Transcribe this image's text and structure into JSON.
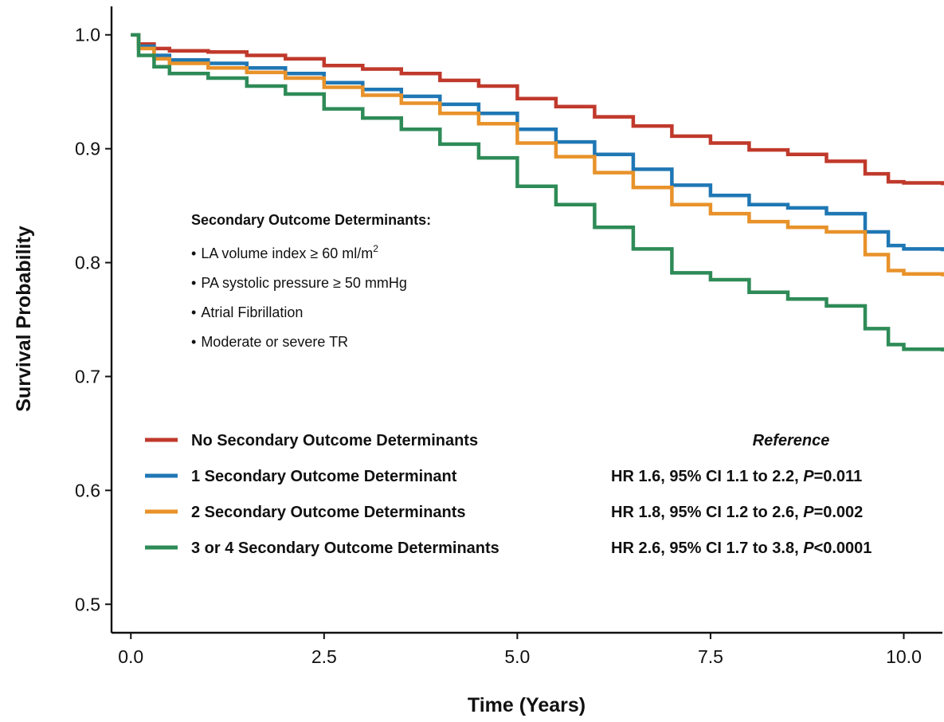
{
  "chart_data": {
    "type": "line",
    "title": "",
    "xlabel": "Time (Years)",
    "ylabel": "Survival Probability",
    "xlim": [
      -0.25,
      10.5
    ],
    "ylim": [
      0.475,
      1.025
    ],
    "x_ticks": [
      0.0,
      2.5,
      5.0,
      7.5,
      10.0
    ],
    "x_tick_labels": [
      "0.0",
      "2.5",
      "5.0",
      "7.5",
      "10.0"
    ],
    "y_ticks": [
      0.5,
      0.6,
      0.7,
      0.8,
      0.9,
      1.0
    ],
    "y_tick_labels": [
      "0.5",
      "0.6",
      "0.7",
      "0.8",
      "0.9",
      "1.0"
    ],
    "grid": false,
    "legend_position": "bottom-left inside plot",
    "annotation": {
      "title": "Secondary Outcome Determinants:",
      "items": [
        {
          "bullet": "•",
          "text": "LA volume index ≥ 60 ml/m",
          "sup": "2"
        },
        {
          "bullet": "•",
          "text": "PA systolic pressure ≥ 50 mmHg",
          "sup": ""
        },
        {
          "bullet": "•",
          "text": "Atrial Fibrillation",
          "sup": ""
        },
        {
          "bullet": "•",
          "text": "Moderate or severe TR",
          "sup": ""
        }
      ]
    },
    "series": [
      {
        "name": "No Secondary Outcome Determinants",
        "color": "#C0392B",
        "stat": {
          "prefix": "",
          "p_symbol": "",
          "suffix": "",
          "reference": "Reference"
        },
        "x": [
          0,
          0.1,
          0.3,
          0.5,
          1.0,
          1.5,
          2.0,
          2.5,
          3.0,
          3.5,
          4.0,
          4.5,
          5.0,
          5.5,
          6.0,
          6.5,
          7.0,
          7.5,
          8.0,
          8.5,
          9.0,
          9.5,
          9.8,
          10.0,
          10.5
        ],
        "y": [
          1.0,
          0.992,
          0.988,
          0.986,
          0.985,
          0.982,
          0.979,
          0.973,
          0.97,
          0.966,
          0.96,
          0.955,
          0.944,
          0.937,
          0.928,
          0.92,
          0.911,
          0.905,
          0.899,
          0.895,
          0.889,
          0.878,
          0.871,
          0.87,
          0.868
        ]
      },
      {
        "name": "1 Secondary Outcome Determinant",
        "color": "#1F77B4",
        "stat": {
          "prefix": "HR 1.6, 95% CI 1.1 to 2.2, ",
          "p_symbol": "P",
          "suffix": "=0.011",
          "reference": ""
        },
        "x": [
          0,
          0.1,
          0.3,
          0.5,
          1.0,
          1.5,
          2.0,
          2.5,
          3.0,
          3.5,
          4.0,
          4.5,
          5.0,
          5.5,
          6.0,
          6.5,
          7.0,
          7.5,
          8.0,
          8.5,
          9.0,
          9.5,
          9.8,
          10.0,
          10.5
        ],
        "y": [
          1.0,
          0.99,
          0.982,
          0.978,
          0.975,
          0.971,
          0.966,
          0.958,
          0.952,
          0.946,
          0.939,
          0.931,
          0.917,
          0.906,
          0.895,
          0.882,
          0.868,
          0.859,
          0.851,
          0.848,
          0.843,
          0.827,
          0.815,
          0.812,
          0.81
        ]
      },
      {
        "name": "2 Secondary Outcome Determinants",
        "color": "#E8922A",
        "stat": {
          "prefix": "HR 1.8, 95% CI 1.2 to 2.6, ",
          "p_symbol": "P",
          "suffix": "=0.002",
          "reference": ""
        },
        "x": [
          0,
          0.1,
          0.3,
          0.5,
          1.0,
          1.5,
          2.0,
          2.5,
          3.0,
          3.5,
          4.0,
          4.5,
          5.0,
          5.5,
          6.0,
          6.5,
          7.0,
          7.5,
          8.0,
          8.5,
          9.0,
          9.5,
          9.8,
          10.0,
          10.5
        ],
        "y": [
          1.0,
          0.988,
          0.979,
          0.975,
          0.971,
          0.967,
          0.962,
          0.954,
          0.947,
          0.94,
          0.931,
          0.922,
          0.905,
          0.893,
          0.879,
          0.866,
          0.851,
          0.843,
          0.836,
          0.831,
          0.827,
          0.807,
          0.793,
          0.79,
          0.788
        ]
      },
      {
        "name": "3 or 4 Secondary Outcome Determinants",
        "color": "#2E8B57",
        "stat": {
          "prefix": "HR 2.6, 95% CI 1.7 to 3.8, ",
          "p_symbol": "P",
          "suffix": "<0.0001",
          "reference": ""
        },
        "x": [
          0,
          0.1,
          0.3,
          0.5,
          1.0,
          1.5,
          2.0,
          2.5,
          3.0,
          3.5,
          4.0,
          4.5,
          5.0,
          5.5,
          6.0,
          6.5,
          7.0,
          7.5,
          8.0,
          8.5,
          9.0,
          9.5,
          9.8,
          10.0,
          10.5
        ],
        "y": [
          1.0,
          0.982,
          0.972,
          0.966,
          0.962,
          0.955,
          0.948,
          0.935,
          0.927,
          0.917,
          0.904,
          0.892,
          0.867,
          0.851,
          0.831,
          0.812,
          0.791,
          0.785,
          0.774,
          0.768,
          0.762,
          0.742,
          0.728,
          0.724,
          0.722
        ]
      }
    ]
  }
}
